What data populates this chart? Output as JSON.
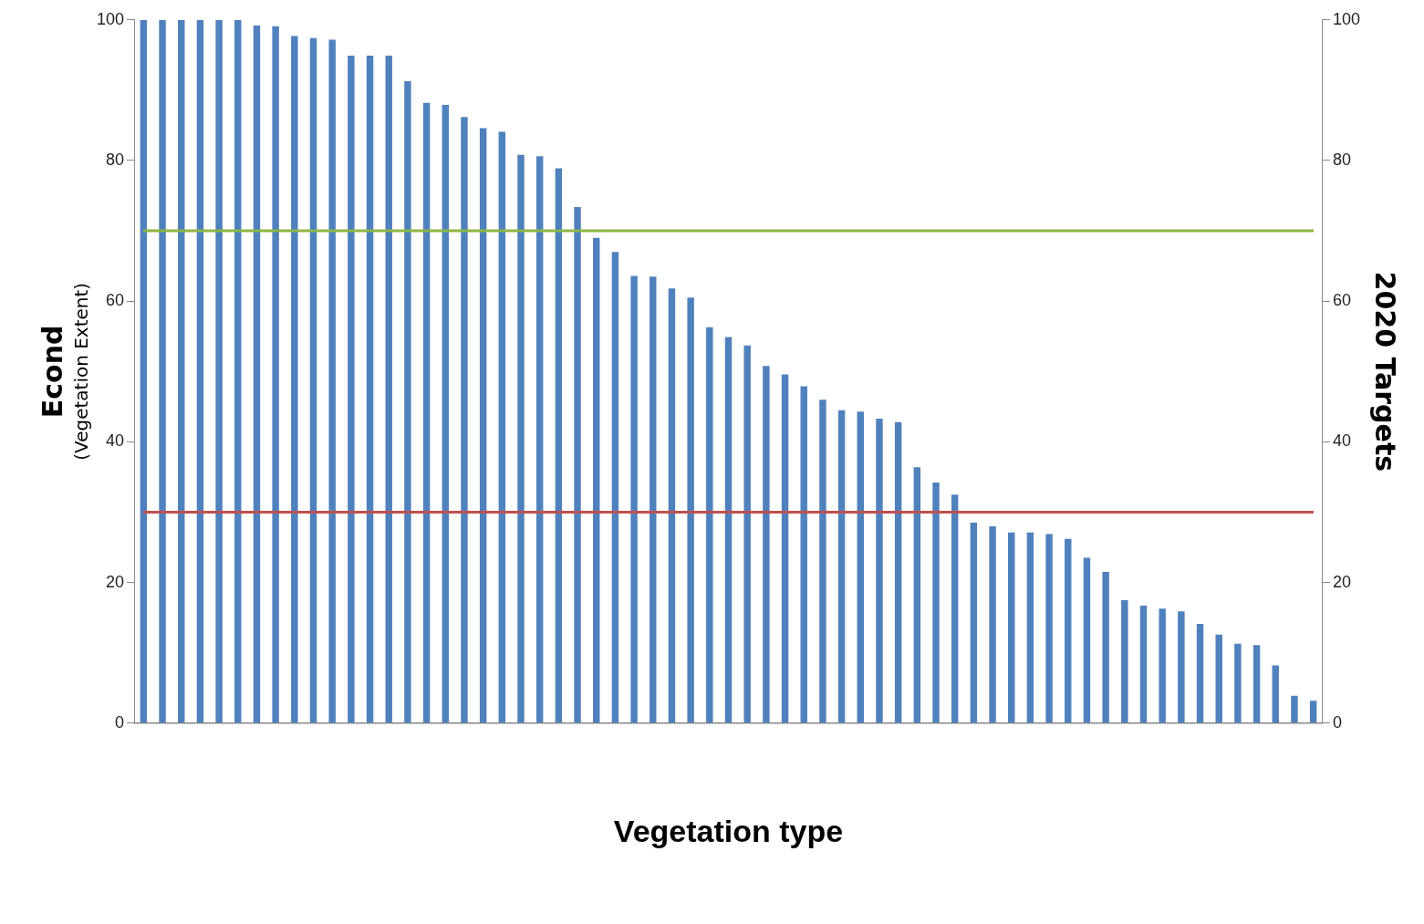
{
  "chart_data": {
    "type": "bar",
    "xlabel": "Vegetation type",
    "ylabel": "Econd\n(Vegetation Extent)",
    "y2label": "2020 Targets",
    "categories": [
      null,
      null,
      null,
      null,
      null,
      null,
      null,
      null,
      null,
      null,
      null,
      null,
      null,
      null,
      null,
      null,
      null,
      null,
      null,
      null,
      null,
      null,
      null,
      null,
      null,
      null,
      null,
      null,
      null,
      null,
      null,
      null,
      null,
      null,
      null,
      null,
      null,
      null,
      null,
      null,
      null,
      null,
      null,
      null,
      null,
      null,
      null,
      null,
      null,
      null,
      null,
      null,
      null,
      null,
      null,
      null,
      null,
      null,
      null,
      null,
      null,
      null,
      null
    ],
    "values": [
      100,
      100,
      100,
      100,
      100,
      100,
      99.2,
      99.1,
      97.7,
      97.4,
      97.2,
      94.9,
      94.9,
      94.9,
      91.3,
      88.2,
      87.9,
      86.2,
      84.6,
      84.1,
      80.8,
      80.6,
      78.9,
      73.4,
      69.0,
      67.0,
      63.6,
      63.5,
      61.8,
      60.5,
      56.3,
      54.9,
      53.7,
      50.8,
      49.6,
      47.9,
      46.0,
      44.5,
      44.3,
      43.3,
      42.8,
      36.4,
      34.2,
      32.5,
      28.5,
      28.0,
      27.1,
      27.1,
      26.9,
      26.2,
      23.5,
      21.5,
      17.5,
      16.7,
      16.3,
      15.9,
      14.1,
      12.6,
      11.3,
      11.1,
      8.2,
      3.9,
      3.2
    ],
    "color": "#4f81bd",
    "ylim": [
      0,
      100
    ],
    "yticks": [
      0,
      20,
      40,
      60,
      80,
      100
    ],
    "y2lim": [
      0,
      100
    ],
    "y2ticks": [
      0,
      20,
      40,
      60,
      80,
      100
    ],
    "ref_lines": [
      {
        "axis": "y",
        "value": 70,
        "color": "#8db543"
      },
      {
        "axis": "y",
        "value": 30,
        "color": "#c0504d"
      }
    ],
    "grid": false,
    "legend": false
  }
}
